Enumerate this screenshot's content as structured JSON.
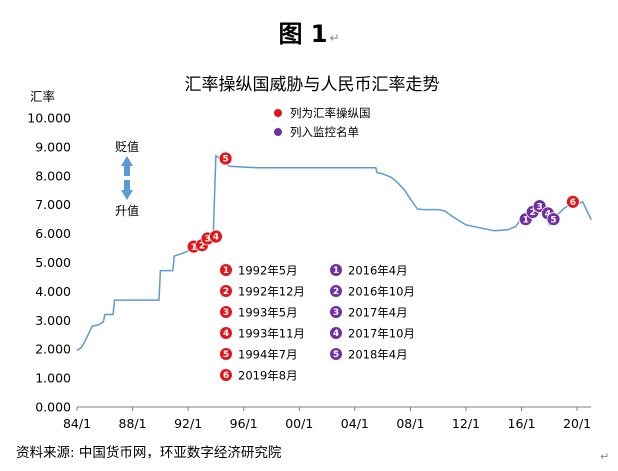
{
  "figure_title": "图 1",
  "return_mark": "↵",
  "source": "资料来源: 中国货币网，环亚数字经济研究院",
  "colors": {
    "line": "#5b9bd5",
    "listed": "#e3151a",
    "monitor": "#7030a0",
    "arrow": "#5b9bd5"
  },
  "annotations": {
    "depreciate": "贬值",
    "appreciate": "升值"
  },
  "chart_data": {
    "type": "line",
    "title": "汇率操纵国威胁与人民币汇率走势",
    "ylabel": "汇率",
    "xlabel": "",
    "ylim": [
      0,
      10
    ],
    "xlim": [
      1984.0,
      2021.0
    ],
    "y_ticks": [
      "0.000",
      "1.000",
      "2.000",
      "3.000",
      "4.000",
      "5.000",
      "6.000",
      "7.000",
      "8.000",
      "9.000",
      "10.000"
    ],
    "x_ticks": [
      {
        "label": "84/1",
        "value": 1984
      },
      {
        "label": "88/1",
        "value": 1988
      },
      {
        "label": "92/1",
        "value": 1992
      },
      {
        "label": "96/1",
        "value": 1996
      },
      {
        "label": "00/1",
        "value": 2000
      },
      {
        "label": "04/1",
        "value": 2004
      },
      {
        "label": "08/1",
        "value": 2008
      },
      {
        "label": "12/1",
        "value": 2012
      },
      {
        "label": "16/1",
        "value": 2016
      },
      {
        "label": "20/1",
        "value": 2020
      }
    ],
    "grid": false,
    "legend_position": "top-center",
    "legend": [
      {
        "label": "列为汇率操纵国",
        "color_key": "listed"
      },
      {
        "label": "列入监控名单",
        "color_key": "monitor"
      }
    ],
    "series": [
      {
        "points": [
          [
            1984.0,
            1.97
          ],
          [
            1984.3,
            2.05
          ],
          [
            1984.6,
            2.3
          ],
          [
            1984.9,
            2.6
          ],
          [
            1985.1,
            2.8
          ],
          [
            1985.6,
            2.85
          ],
          [
            1985.9,
            2.95
          ],
          [
            1986.0,
            3.2
          ],
          [
            1986.6,
            3.2
          ],
          [
            1986.7,
            3.7
          ],
          [
            1989.9,
            3.7
          ],
          [
            1990.0,
            4.72
          ],
          [
            1990.9,
            4.72
          ],
          [
            1991.0,
            5.22
          ],
          [
            1991.5,
            5.3
          ],
          [
            1992.0,
            5.4
          ],
          [
            1992.5,
            5.55
          ],
          [
            1993.0,
            5.75
          ],
          [
            1993.8,
            5.8
          ],
          [
            1994.0,
            8.7
          ],
          [
            1994.3,
            8.6
          ],
          [
            1994.6,
            8.45
          ],
          [
            1995.0,
            8.33
          ],
          [
            1996.0,
            8.3
          ],
          [
            1997.0,
            8.28
          ],
          [
            2005.5,
            8.28
          ],
          [
            2005.6,
            8.11
          ],
          [
            2006.0,
            8.07
          ],
          [
            2006.6,
            7.95
          ],
          [
            2007.0,
            7.8
          ],
          [
            2007.5,
            7.55
          ],
          [
            2008.0,
            7.2
          ],
          [
            2008.5,
            6.85
          ],
          [
            2009.0,
            6.83
          ],
          [
            2010.0,
            6.83
          ],
          [
            2010.5,
            6.78
          ],
          [
            2011.0,
            6.6
          ],
          [
            2011.5,
            6.45
          ],
          [
            2012.0,
            6.3
          ],
          [
            2013.0,
            6.2
          ],
          [
            2014.0,
            6.1
          ],
          [
            2015.0,
            6.13
          ],
          [
            2015.6,
            6.25
          ],
          [
            2016.0,
            6.55
          ],
          [
            2016.5,
            6.65
          ],
          [
            2017.0,
            6.9
          ],
          [
            2017.5,
            6.8
          ],
          [
            2018.0,
            6.3
          ],
          [
            2018.5,
            6.6
          ],
          [
            2019.0,
            6.85
          ],
          [
            2019.6,
            7.05
          ],
          [
            2020.0,
            7.0
          ],
          [
            2020.4,
            7.1
          ],
          [
            2020.8,
            6.7
          ],
          [
            2021.0,
            6.5
          ]
        ]
      }
    ],
    "events": [
      {
        "num": "1",
        "type": "listed",
        "label": "1992年5月",
        "x": 1992.4,
        "y": 5.55
      },
      {
        "num": "2",
        "type": "listed",
        "label": "1992年12月",
        "x": 1993.0,
        "y": 5.6
      },
      {
        "num": "3",
        "type": "listed",
        "label": "1993年5月",
        "x": 1993.4,
        "y": 5.83
      },
      {
        "num": "4",
        "type": "listed",
        "label": "1993年11月",
        "x": 1994.0,
        "y": 5.9
      },
      {
        "num": "5",
        "type": "listed",
        "label": "1994年7月",
        "x": 1994.7,
        "y": 8.6
      },
      {
        "num": "6",
        "type": "listed",
        "label": "2019年8月",
        "x": 2019.7,
        "y": 7.1
      },
      {
        "num": "1",
        "type": "monitor",
        "label": "2016年4月",
        "x": 2016.3,
        "y": 6.5
      },
      {
        "num": "2",
        "type": "monitor",
        "label": "2016年10月",
        "x": 2016.8,
        "y": 6.75
      },
      {
        "num": "3",
        "type": "monitor",
        "label": "2017年4月",
        "x": 2017.3,
        "y": 6.95
      },
      {
        "num": "4",
        "type": "monitor",
        "label": "2017年10月",
        "x": 2017.9,
        "y": 6.7
      },
      {
        "num": "5",
        "type": "monitor",
        "label": "2018年4月",
        "x": 2018.3,
        "y": 6.5
      }
    ]
  }
}
